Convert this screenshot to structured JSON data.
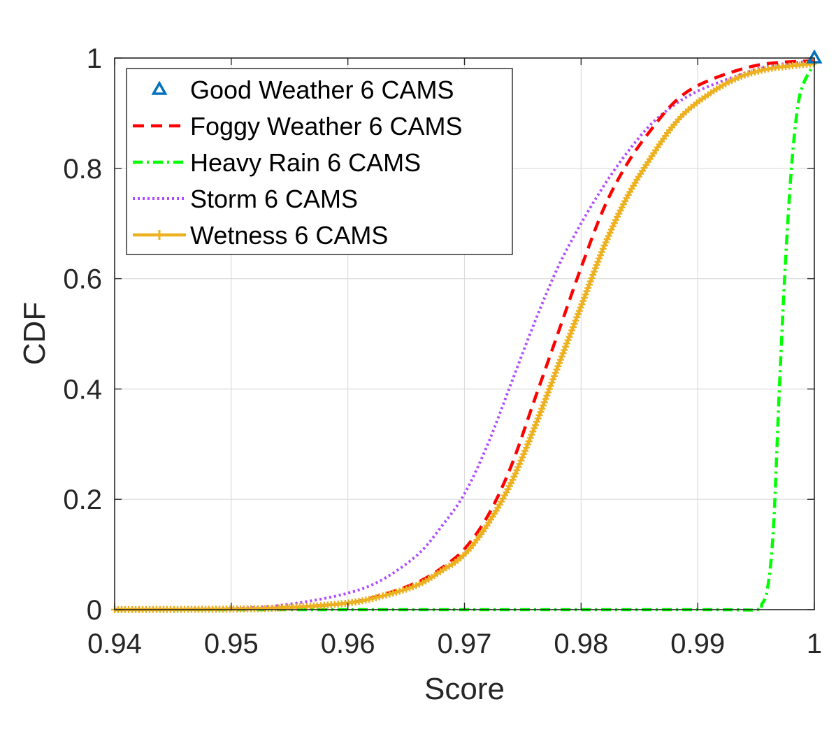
{
  "chart_data": {
    "type": "line",
    "title": "",
    "xlabel": "Score",
    "ylabel": "CDF",
    "xlim": [
      0.94,
      1.0
    ],
    "ylim": [
      0,
      1
    ],
    "grid": true,
    "legend_position": "top-left",
    "x_ticks": [
      "0.94",
      "0.95",
      "0.96",
      "0.97",
      "0.98",
      "0.99",
      "1"
    ],
    "y_ticks": [
      "0",
      "0.2",
      "0.4",
      "0.6",
      "0.8",
      "1"
    ],
    "x_tick_values": [
      0.94,
      0.95,
      0.96,
      0.97,
      0.98,
      0.99,
      1.0
    ],
    "y_tick_values": [
      0,
      0.2,
      0.4,
      0.6,
      0.8,
      1.0
    ],
    "series": [
      {
        "name": "Good Weather 6 CAMS",
        "style": "marker-triangle",
        "color": "#0072BD",
        "x": [
          1.0
        ],
        "y": [
          1.0
        ]
      },
      {
        "name": "Foggy Weather 6 CAMS",
        "style": "dashed",
        "color": "#FF0000",
        "x": [
          0.94,
          0.95,
          0.955,
          0.96,
          0.963,
          0.966,
          0.968,
          0.97,
          0.972,
          0.974,
          0.976,
          0.978,
          0.98,
          0.982,
          0.984,
          0.986,
          0.988,
          0.99,
          0.993,
          0.996,
          1.0
        ],
        "y": [
          0,
          0.001,
          0.004,
          0.012,
          0.027,
          0.05,
          0.075,
          0.11,
          0.17,
          0.26,
          0.38,
          0.5,
          0.62,
          0.73,
          0.81,
          0.87,
          0.92,
          0.95,
          0.975,
          0.99,
          0.995
        ]
      },
      {
        "name": "Heavy Rain 6 CAMS",
        "style": "dash-dot",
        "color": "#00FF00",
        "x": [
          0.94,
          0.96,
          0.99,
          0.995,
          0.9955,
          0.996,
          0.9965,
          0.997,
          0.9975,
          0.998,
          0.9985,
          0.999,
          1.0
        ],
        "y": [
          0,
          0,
          0,
          0,
          0.01,
          0.04,
          0.15,
          0.4,
          0.62,
          0.79,
          0.9,
          0.95,
          0.99
        ]
      },
      {
        "name": "Storm 6 CAMS",
        "style": "dotted",
        "color": "#B04AFF",
        "x": [
          0.94,
          0.95,
          0.955,
          0.96,
          0.963,
          0.966,
          0.968,
          0.97,
          0.972,
          0.974,
          0.976,
          0.978,
          0.98,
          0.982,
          0.984,
          0.986,
          0.988,
          0.99,
          0.993,
          0.996,
          1.0
        ],
        "y": [
          0,
          0.002,
          0.01,
          0.03,
          0.055,
          0.1,
          0.15,
          0.21,
          0.3,
          0.41,
          0.52,
          0.62,
          0.7,
          0.77,
          0.83,
          0.88,
          0.915,
          0.94,
          0.965,
          0.985,
          0.995
        ]
      },
      {
        "name": "Wetness 6 CAMS",
        "style": "solid-plus",
        "color": "#EDB120",
        "x": [
          0.94,
          0.95,
          0.955,
          0.96,
          0.963,
          0.966,
          0.968,
          0.97,
          0.972,
          0.974,
          0.976,
          0.978,
          0.98,
          0.982,
          0.984,
          0.986,
          0.988,
          0.99,
          0.993,
          0.996,
          1.0
        ],
        "y": [
          0,
          0.001,
          0.004,
          0.012,
          0.025,
          0.045,
          0.07,
          0.1,
          0.155,
          0.23,
          0.33,
          0.44,
          0.55,
          0.66,
          0.75,
          0.82,
          0.88,
          0.92,
          0.96,
          0.98,
          0.99
        ]
      }
    ]
  }
}
